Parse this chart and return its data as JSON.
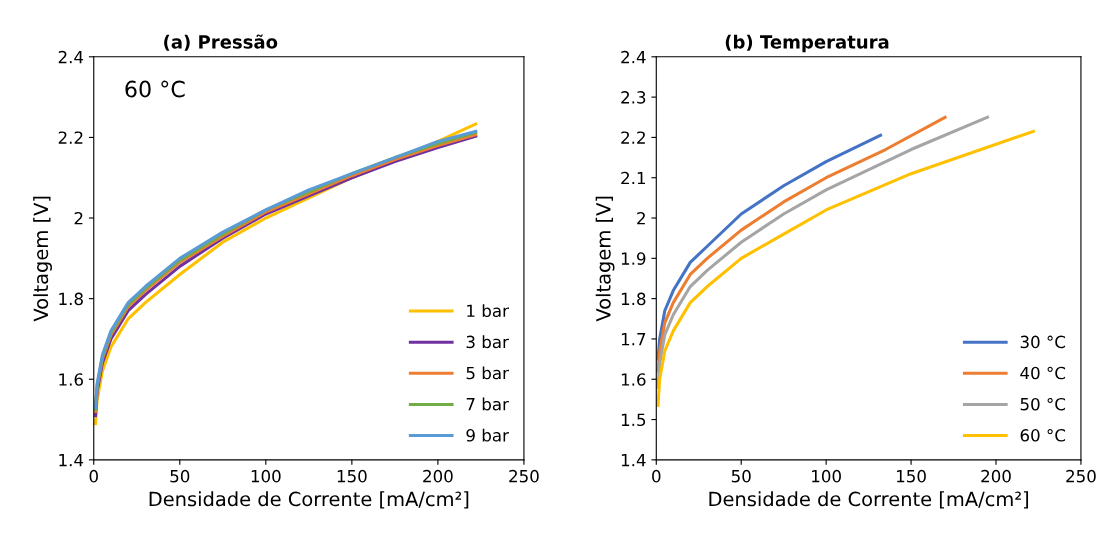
{
  "chart_data": [
    {
      "type": "line",
      "title": "(a) Pressão",
      "xlabel": "Densidade de Corrente [mA/cm²]",
      "ylabel": "Voltagem [V]",
      "annotations": [
        "60 °C"
      ],
      "xlim": [
        0,
        250
      ],
      "xticks": [
        0,
        50,
        100,
        150,
        200,
        250
      ],
      "ylim": [
        1.4,
        2.4
      ],
      "yticks": [
        1.4,
        1.6,
        1.8,
        2,
        2.2,
        2.4
      ],
      "grid": false,
      "legend": "bottom right",
      "x": [
        1,
        2,
        5,
        10,
        20,
        30,
        50,
        75,
        100,
        125,
        150,
        175,
        200,
        222
      ],
      "series": [
        {
          "name": "1 bar",
          "color": "#ffc000",
          "values": [
            1.49,
            1.55,
            1.62,
            1.68,
            1.75,
            1.79,
            1.86,
            1.94,
            2.0,
            2.05,
            2.1,
            2.145,
            2.19,
            2.233
          ]
        },
        {
          "name": "3 bar",
          "color": "#7030a0",
          "values": [
            1.51,
            1.57,
            1.64,
            1.7,
            1.77,
            1.81,
            1.88,
            1.95,
            2.01,
            2.055,
            2.1,
            2.14,
            2.175,
            2.203
          ]
        },
        {
          "name": "5 bar",
          "color": "#ed7d31",
          "values": [
            1.52,
            1.58,
            1.65,
            1.71,
            1.78,
            1.82,
            1.89,
            1.955,
            2.015,
            2.06,
            2.105,
            2.145,
            2.18,
            2.207
          ]
        },
        {
          "name": "7 bar",
          "color": "#70ad47",
          "values": [
            1.525,
            1.585,
            1.655,
            1.715,
            1.785,
            1.825,
            1.895,
            1.96,
            2.02,
            2.065,
            2.11,
            2.15,
            2.185,
            2.212
          ]
        },
        {
          "name": "9 bar",
          "color": "#5b9bd5",
          "values": [
            1.53,
            1.59,
            1.66,
            1.72,
            1.79,
            1.83,
            1.9,
            1.965,
            2.02,
            2.07,
            2.11,
            2.15,
            2.19,
            2.215
          ]
        }
      ]
    },
    {
      "type": "line",
      "title": "(b) Temperatura",
      "xlabel": "Densidade de Corrente [mA/cm²]",
      "ylabel": "Voltagem [V]",
      "xlim": [
        0,
        250
      ],
      "xticks": [
        0,
        50,
        100,
        150,
        200,
        250
      ],
      "ylim": [
        1.4,
        2.4
      ],
      "yticks": [
        1.4,
        1.5,
        1.6,
        1.7,
        1.8,
        1.9,
        2,
        2.1,
        2.2,
        2.3,
        2.4
      ],
      "grid": false,
      "legend": "bottom right",
      "series": [
        {
          "name": "30 °C",
          "color": "#4472c4",
          "x": [
            1,
            2,
            5,
            10,
            20,
            30,
            50,
            75,
            100,
            132
          ],
          "values": [
            1.65,
            1.7,
            1.77,
            1.82,
            1.89,
            1.93,
            2.01,
            2.08,
            2.14,
            2.205
          ]
        },
        {
          "name": "40 °C",
          "color": "#ed7d31",
          "x": [
            1,
            2,
            5,
            10,
            20,
            30,
            50,
            75,
            100,
            135,
            170
          ],
          "values": [
            1.62,
            1.67,
            1.74,
            1.79,
            1.86,
            1.9,
            1.97,
            2.04,
            2.1,
            2.17,
            2.25
          ]
        },
        {
          "name": "50 °C",
          "color": "#a5a5a5",
          "x": [
            1,
            2,
            5,
            10,
            20,
            30,
            50,
            75,
            100,
            150,
            195
          ],
          "values": [
            1.58,
            1.64,
            1.71,
            1.76,
            1.83,
            1.87,
            1.94,
            2.01,
            2.07,
            2.17,
            2.25
          ]
        },
        {
          "name": "60 °C",
          "color": "#ffc000",
          "x": [
            1,
            2,
            5,
            10,
            20,
            30,
            50,
            75,
            100,
            150,
            222
          ],
          "values": [
            1.535,
            1.6,
            1.67,
            1.72,
            1.79,
            1.83,
            1.9,
            1.96,
            2.02,
            2.11,
            2.215
          ]
        }
      ]
    }
  ]
}
